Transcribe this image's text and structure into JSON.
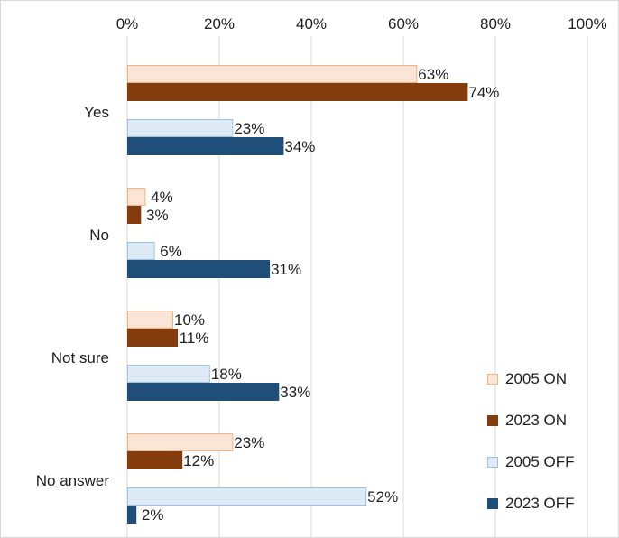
{
  "colors": {
    "border": "#d9d9d9",
    "grid": "#d9d9d9",
    "text": "#1f1f1f"
  },
  "chart_data": {
    "type": "bar",
    "orientation": "horizontal",
    "xlim": [
      0,
      100
    ],
    "x_ticks": [
      0,
      20,
      40,
      60,
      80,
      100
    ],
    "x_tick_labels": [
      "0%",
      "20%",
      "40%",
      "60%",
      "80%",
      "100%"
    ],
    "x_axis_position": "top",
    "grid": true,
    "legend_position": "bottom-right",
    "categories": [
      "Yes",
      "No",
      "Not sure",
      "No answer"
    ],
    "series": [
      {
        "name": "2005 ON",
        "values": [
          63,
          4,
          10,
          23
        ],
        "labels": [
          "63%",
          "4%",
          "10%",
          "23%"
        ],
        "fill": "#fbe5d6",
        "stroke": "#f4b183"
      },
      {
        "name": "2023 ON",
        "values": [
          74,
          3,
          11,
          12
        ],
        "labels": [
          "74%",
          "3%",
          "11%",
          "12%"
        ],
        "fill": "#843c0c",
        "stroke": "#843c0c"
      },
      {
        "name": "2005 OFF",
        "values": [
          23,
          6,
          18,
          52
        ],
        "labels": [
          "23%",
          "6%",
          "18%",
          "52%"
        ],
        "fill": "#deebf7",
        "stroke": "#9dc3e6"
      },
      {
        "name": "2023 OFF",
        "values": [
          34,
          31,
          33,
          2
        ],
        "labels": [
          "34%",
          "31%",
          "33%",
          "2%"
        ],
        "fill": "#1f4e79",
        "stroke": "#1f4e79"
      }
    ]
  }
}
